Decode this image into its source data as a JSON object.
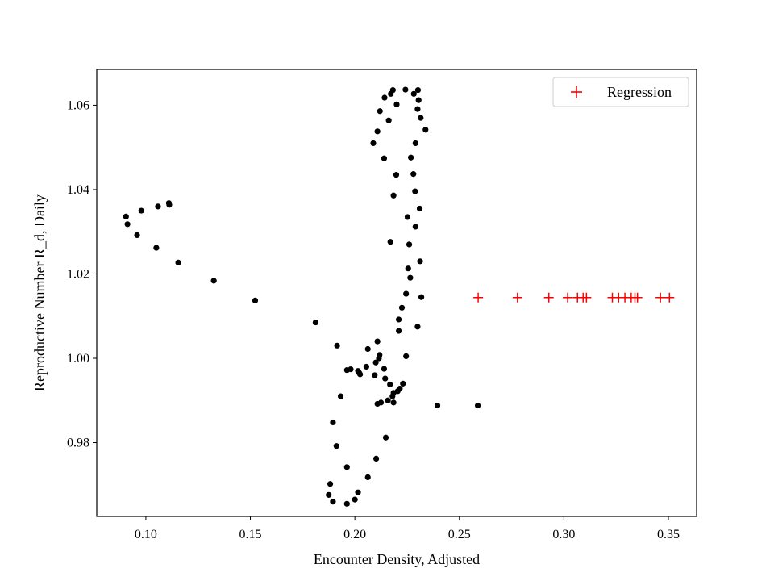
{
  "chart_data": {
    "type": "scatter",
    "xlabel": "Encounter Density, Adjusted",
    "ylabel": "Reproductive Number R_d, Daily",
    "xlim": [
      0.0765,
      0.3635
    ],
    "ylim": [
      0.9625,
      1.0685
    ],
    "x_ticks": [
      {
        "value": 0.1,
        "label": "0.10"
      },
      {
        "value": 0.15,
        "label": "0.15"
      },
      {
        "value": 0.2,
        "label": "0.20"
      },
      {
        "value": 0.25,
        "label": "0.25"
      },
      {
        "value": 0.3,
        "label": "0.30"
      },
      {
        "value": 0.35,
        "label": "0.35"
      }
    ],
    "y_ticks": [
      {
        "value": 0.98,
        "label": "0.98"
      },
      {
        "value": 1.0,
        "label": "1.00"
      },
      {
        "value": 1.02,
        "label": "1.02"
      },
      {
        "value": 1.04,
        "label": "1.04"
      },
      {
        "value": 1.06,
        "label": "1.06"
      }
    ],
    "grid": false,
    "legend_position": "top-right",
    "series": [
      {
        "color": "#000000",
        "marker": "dot",
        "points": [
          [
            0.0905,
            1.0336
          ],
          [
            0.0912,
            1.0318
          ],
          [
            0.0958,
            1.0292
          ],
          [
            0.0978,
            1.035
          ],
          [
            0.105,
            1.0262
          ],
          [
            0.1058,
            1.036
          ],
          [
            0.111,
            1.0368
          ],
          [
            0.1112,
            1.0364
          ],
          [
            0.1155,
            1.0227
          ],
          [
            0.1325,
            1.0184
          ],
          [
            0.1523,
            1.0137
          ],
          [
            0.1812,
            1.0085
          ],
          [
            0.1875,
            0.9676
          ],
          [
            0.1882,
            0.9702
          ],
          [
            0.1895,
            0.966
          ],
          [
            0.1895,
            0.9848
          ],
          [
            0.1912,
            0.9792
          ],
          [
            0.1915,
            1.003
          ],
          [
            0.1932,
            0.991
          ],
          [
            0.1962,
            0.9972
          ],
          [
            0.1962,
            0.9742
          ],
          [
            0.1962,
            0.9655
          ],
          [
            0.198,
            0.9974
          ],
          [
            0.2,
            0.9665
          ],
          [
            0.2015,
            0.997
          ],
          [
            0.2015,
            0.9682
          ],
          [
            0.202,
            0.9966
          ],
          [
            0.2025,
            0.9962
          ],
          [
            0.2055,
            0.998
          ],
          [
            0.2062,
            1.0022
          ],
          [
            0.2062,
            0.9718
          ],
          [
            0.2088,
            1.051
          ],
          [
            0.2095,
            0.996
          ],
          [
            0.21,
            0.999
          ],
          [
            0.2102,
            0.9762
          ],
          [
            0.2108,
            1.004
          ],
          [
            0.2108,
            1.0538
          ],
          [
            0.2108,
            0.9892
          ],
          [
            0.2115,
            1.0
          ],
          [
            0.2118,
            1.0008
          ],
          [
            0.212,
            1.0586
          ],
          [
            0.2125,
            0.9895
          ],
          [
            0.214,
            1.0474
          ],
          [
            0.214,
            0.9975
          ],
          [
            0.2142,
            1.0618
          ],
          [
            0.2145,
            0.9952
          ],
          [
            0.2148,
            0.9812
          ],
          [
            0.2158,
            0.99
          ],
          [
            0.2162,
            1.0564
          ],
          [
            0.2168,
            0.9938
          ],
          [
            0.217,
            1.0276
          ],
          [
            0.2172,
            1.0627
          ],
          [
            0.218,
            0.991
          ],
          [
            0.2182,
            1.0636
          ],
          [
            0.2185,
            0.9895
          ],
          [
            0.2185,
            1.0386
          ],
          [
            0.2185,
            0.9918
          ],
          [
            0.2198,
            1.0435
          ],
          [
            0.22,
            1.0602
          ],
          [
            0.2205,
            0.9922
          ],
          [
            0.221,
            1.0092
          ],
          [
            0.221,
            1.0065
          ],
          [
            0.2215,
            0.9928
          ],
          [
            0.2225,
            1.012
          ],
          [
            0.223,
            0.994
          ],
          [
            0.2242,
            1.0637
          ],
          [
            0.2245,
            1.0005
          ],
          [
            0.2245,
            1.0153
          ],
          [
            0.2252,
            1.0335
          ],
          [
            0.2255,
            1.0213
          ],
          [
            0.226,
            1.027
          ],
          [
            0.2265,
            1.0191
          ],
          [
            0.2268,
            1.0476
          ],
          [
            0.228,
            1.0437
          ],
          [
            0.2282,
            1.0627
          ],
          [
            0.2288,
            1.0396
          ],
          [
            0.229,
            1.0312
          ],
          [
            0.229,
            1.051
          ],
          [
            0.23,
            1.0591
          ],
          [
            0.2302,
            1.0636
          ],
          [
            0.2305,
            1.0612
          ],
          [
            0.23,
            1.0075
          ],
          [
            0.231,
            1.0355
          ],
          [
            0.2312,
            1.023
          ],
          [
            0.2315,
            1.057
          ],
          [
            0.2318,
            1.0145
          ],
          [
            0.2338,
            1.0542
          ],
          [
            0.2395,
            0.9888
          ],
          [
            0.2588,
            0.9888
          ]
        ]
      },
      {
        "name": "Regression",
        "color": "#ff0000",
        "marker": "plus",
        "points": [
          [
            0.259,
            1.0144
          ],
          [
            0.2778,
            1.0144
          ],
          [
            0.2928,
            1.0144
          ],
          [
            0.3018,
            1.0144
          ],
          [
            0.3065,
            1.0144
          ],
          [
            0.3092,
            1.0144
          ],
          [
            0.3108,
            1.0144
          ],
          [
            0.3232,
            1.0144
          ],
          [
            0.3262,
            1.0144
          ],
          [
            0.3292,
            1.0144
          ],
          [
            0.3322,
            1.0144
          ],
          [
            0.334,
            1.0144
          ],
          [
            0.3352,
            1.0144
          ],
          [
            0.3462,
            1.0144
          ],
          [
            0.3505,
            1.0144
          ]
        ]
      }
    ]
  }
}
